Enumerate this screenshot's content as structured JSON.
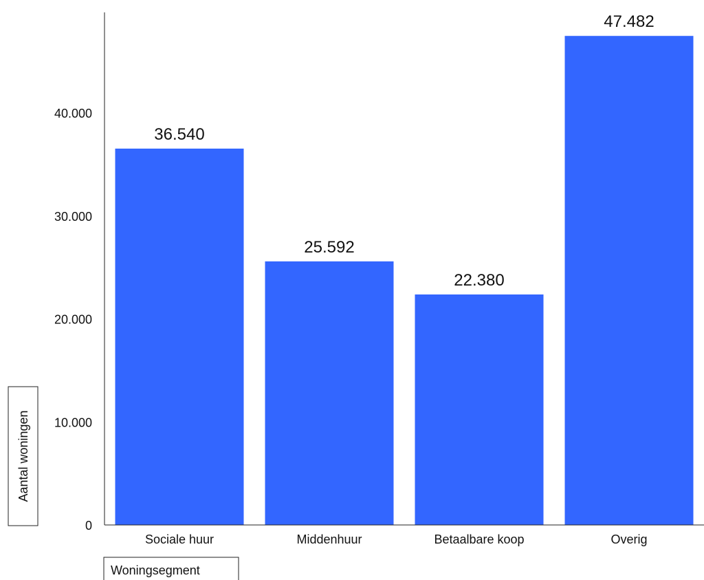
{
  "chart_data": {
    "type": "bar",
    "title": "",
    "xlabel": "Woningsegment",
    "ylabel": "Aantal woningen",
    "categories": [
      "Sociale huur",
      "Middenhuur",
      "Betaalbare koop",
      "Overig"
    ],
    "values": [
      36540,
      25592,
      22380,
      47482
    ],
    "value_labels": [
      "36.540",
      "25.592",
      "22.380",
      "47.482"
    ],
    "yticks": [
      0,
      10000,
      20000,
      30000,
      40000
    ],
    "ytick_labels": [
      "0",
      "10.000",
      "20.000",
      "30.000",
      "40.000"
    ],
    "ylim": [
      0,
      50000
    ],
    "bar_color": "#3366FF",
    "grid": false,
    "legend": "none"
  }
}
